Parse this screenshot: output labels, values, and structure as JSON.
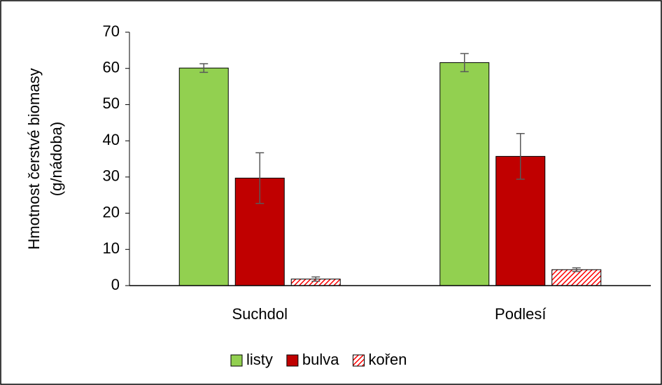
{
  "chart_data": {
    "type": "bar",
    "ylabel": [
      "Hmotnost čerstvé biomasy",
      "(g/nádoba)"
    ],
    "categories": [
      "Suchdol",
      "Podlesí"
    ],
    "series": [
      {
        "name": "listy",
        "color": "#92d050",
        "values": [
          60.1,
          61.6
        ],
        "errors": [
          1.2,
          2.5
        ]
      },
      {
        "name": "bulva",
        "color": "#c00000",
        "values": [
          29.7,
          35.7
        ],
        "errors": [
          7,
          6.3
        ]
      },
      {
        "name": "kořen",
        "color": "#ff0000",
        "hatch": true,
        "values": [
          1.8,
          4.4
        ],
        "errors": [
          0.6,
          0.5
        ]
      }
    ],
    "ylim": [
      0,
      70
    ],
    "yticks": [
      0,
      10,
      20,
      30,
      40,
      50,
      60,
      70
    ],
    "grid": false,
    "legend": "bottom"
  }
}
